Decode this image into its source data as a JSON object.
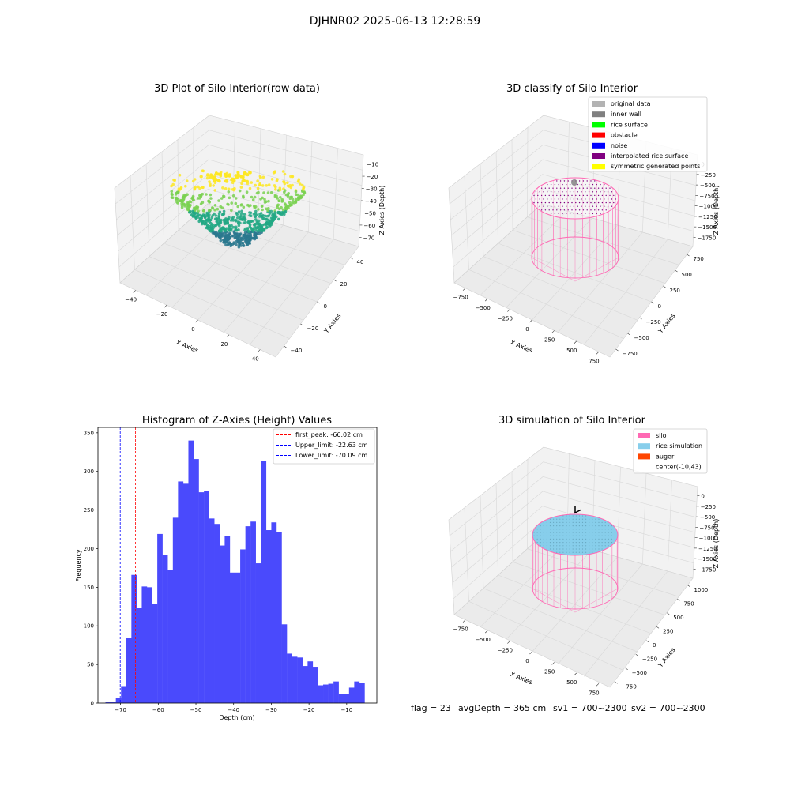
{
  "figure": {
    "suptitle": "DJHNR02 2025-06-13 12:28:59",
    "status": {
      "flag": "flag = 23",
      "avg_depth": "avgDepth = 365 cm",
      "sv1": "sv1 = 700~2300",
      "sv2": "sv2 = 700~2300"
    }
  },
  "chart_data": [
    {
      "type": "scatter",
      "title": "3D Plot of Silo Interior(row data)",
      "xlabel": "X Axies",
      "ylabel": "Y Axies",
      "zlabel": "Z Axies (Depth)",
      "xticks": [
        "−40",
        "−20",
        "0",
        "20",
        "40"
      ],
      "yticks": [
        "−40",
        "−20",
        "0",
        "20",
        "40"
      ],
      "zticks": [
        "−10",
        "−20",
        "−30",
        "−40",
        "−50",
        "−60",
        "−70"
      ],
      "xlim": [
        -50,
        50
      ],
      "ylim": [
        -50,
        50
      ],
      "zlim": [
        -75,
        -5
      ],
      "colormap": [
        "#fde725",
        "#7ad151",
        "#22a884",
        "#2a788e",
        "#414487",
        "#440154"
      ],
      "grid": true
    },
    {
      "type": "scatter",
      "title": "3D classify of Silo Interior",
      "xlabel": "X Axies",
      "ylabel": "Y Axies",
      "zlabel": "Z Axies (Depth)",
      "xticks": [
        "−750",
        "−500",
        "−250",
        "0",
        "250",
        "500",
        "750"
      ],
      "yticks": [
        "−750",
        "−500",
        "−250",
        "0",
        "250",
        "500",
        "750"
      ],
      "zticks": [
        "0",
        "−250",
        "−500",
        "−750",
        "−1000",
        "−1250",
        "−1500",
        "−1750"
      ],
      "legend": [
        {
          "label": "original data",
          "color": "#b3b3b3"
        },
        {
          "label": "inner wall",
          "color": "#808080"
        },
        {
          "label": "rice surface",
          "color": "#00ff00"
        },
        {
          "label": "obstacle",
          "color": "#ff0000"
        },
        {
          "label": "noise",
          "color": "#0000ff"
        },
        {
          "label": "interpolated rice surface",
          "color": "#800080"
        },
        {
          "label": "symmetric generated points",
          "color": "#ffff00"
        }
      ],
      "legend_loc": "upper right",
      "wire_color": "#ff69b4",
      "grid": true
    },
    {
      "type": "bar",
      "title": "Histogram of Z-Axies (Height) Values",
      "xlabel": "Depth (cm)",
      "ylabel": "Frequency",
      "xlim": [
        -76,
        -2
      ],
      "ylim": [
        0,
        357
      ],
      "xticks": [
        -70,
        -60,
        -50,
        -40,
        -30,
        -20,
        -10
      ],
      "xticklabels": [
        "−70",
        "−60",
        "−50",
        "−40",
        "−30",
        "−20",
        "−10"
      ],
      "yticks": [
        0,
        50,
        100,
        150,
        200,
        250,
        300,
        350
      ],
      "bin_start": -74.0,
      "bin_width": 1.375,
      "values": [
        1,
        1,
        7,
        22,
        84,
        166,
        123,
        151,
        150,
        128,
        219,
        192,
        172,
        240,
        287,
        284,
        340,
        316,
        273,
        275,
        239,
        232,
        204,
        216,
        169,
        169,
        199,
        229,
        235,
        181,
        314,
        224,
        234,
        221,
        102,
        64,
        60,
        59,
        48,
        54,
        47,
        23,
        24,
        25,
        28,
        12,
        12,
        20,
        28,
        26
      ],
      "bar_color": "#4a4afc",
      "vlines": [
        {
          "label": "first_peak: -66.02 cm",
          "x": -66.02,
          "color": "#ff0000"
        },
        {
          "label": "Upper_limit: -22.63 cm",
          "x": -22.63,
          "color": "#0000ff"
        },
        {
          "label": "Lower_limit: -70.09 cm",
          "x": -70.09,
          "color": "#0000ff"
        }
      ],
      "legend_loc": "upper right"
    },
    {
      "type": "scatter",
      "title": "3D simulation of Silo Interior",
      "xlabel": "X Axies",
      "ylabel": "Y Axies",
      "zlabel": "Z Axies (Depth)",
      "xticks": [
        "−750",
        "−500",
        "−250",
        "0",
        "250",
        "500",
        "750"
      ],
      "yticks": [
        "−750",
        "−500",
        "−250",
        "0",
        "250",
        "500",
        "750",
        "1000"
      ],
      "zticks": [
        "0",
        "−250",
        "−500",
        "−750",
        "−1000",
        "−1250",
        "−1500",
        "−1750"
      ],
      "legend": [
        {
          "label": "silo",
          "color": "#ff69b4"
        },
        {
          "label": "rice simulation",
          "color": "#87ceeb"
        },
        {
          "label": "auger",
          "color": "#ff4500"
        },
        {
          "label": "center(-10,43)",
          "color": ""
        }
      ],
      "legend_loc": "upper right",
      "grid": true
    }
  ]
}
